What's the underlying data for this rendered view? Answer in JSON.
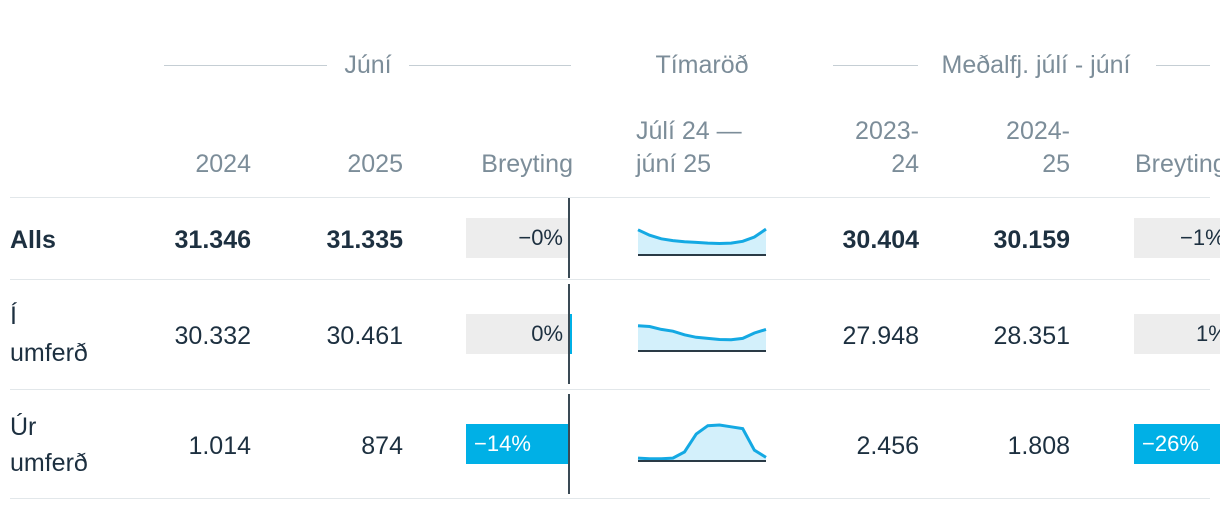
{
  "column_groups": {
    "june": "Júní",
    "timeseries": "Tímaröð",
    "average": "Meðalfj. júlí - júní"
  },
  "columns": {
    "y2024": "2024",
    "y2025": "2025",
    "change": "Breyting",
    "series_line1": "Júlí 24 —",
    "series_line2": "júní 25",
    "avg1_line1": "2023-",
    "avg1_line2": "24",
    "avg2_line1": "2024-",
    "avg2_line2": "25",
    "avg_change": "Breyting"
  },
  "rows": [
    {
      "label_line1": "Alls",
      "label_line2": "",
      "bold": true,
      "june_2024": "31.346",
      "june_2025": "31.335",
      "june_change_label": "−0%",
      "june_change_value": -0.04,
      "sparkline": [
        0.7,
        0.55,
        0.45,
        0.4,
        0.37,
        0.35,
        0.33,
        0.32,
        0.33,
        0.38,
        0.5,
        0.72
      ],
      "avg_2023_24": "30.404",
      "avg_2024_25": "30.159",
      "avg_change_label": "−1%",
      "avg_change_value": -0.8
    },
    {
      "label_line1": "Í",
      "label_line2": "umferð",
      "bold": false,
      "june_2024": "30.332",
      "june_2025": "30.461",
      "june_change_label": "0%",
      "june_change_value": 0.4,
      "sparkline": [
        0.7,
        0.68,
        0.6,
        0.55,
        0.45,
        0.38,
        0.35,
        0.32,
        0.31,
        0.35,
        0.5,
        0.6
      ],
      "avg_2023_24": "27.948",
      "avg_2024_25": "28.351",
      "avg_change_label": "1%",
      "avg_change_value": 1.4
    },
    {
      "label_line1": "Úr",
      "label_line2": "umferð",
      "bold": false,
      "june_2024": "1.014",
      "june_2025": "874",
      "june_change_label": "−14%",
      "june_change_value": -14,
      "sparkline": [
        0.08,
        0.06,
        0.06,
        0.08,
        0.25,
        0.75,
        0.98,
        1.0,
        0.95,
        0.9,
        0.3,
        0.1
      ],
      "avg_2023_24": "2.456",
      "avg_2024_25": "1.808",
      "avg_change_label": "−26%",
      "avg_change_value": -26
    }
  ],
  "colors": {
    "bar_fill": "#00b0e6",
    "bar_bg": "#ededed",
    "spark_line": "#14a9e3",
    "spark_area": "#d3f0fb"
  }
}
